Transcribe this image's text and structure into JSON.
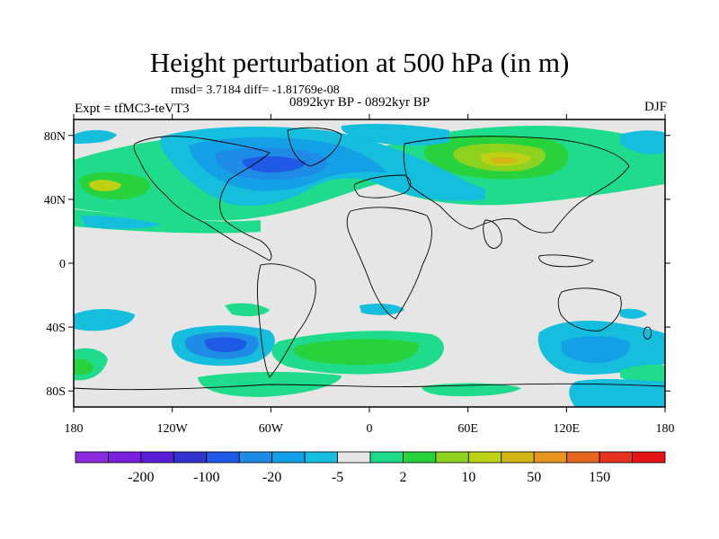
{
  "title": "Height perturbation at 500 hPa (in m)",
  "stats_line": "rmsd= 3.7184 diff= -1.81769e-08",
  "period_line": "0892kyr BP - 0892kyr BP",
  "experiment_line": "Expt = tfMC3-teVT3",
  "season": "DJF",
  "map": {
    "projection": "cylindrical-equidistant",
    "lon_range": [
      -180,
      180
    ],
    "lat_range": [
      -90,
      90
    ],
    "x_tick_labels": [
      "180",
      "120W",
      "60W",
      "0",
      "60E",
      "120E",
      "180"
    ],
    "y_tick_labels": [
      "80N",
      "40N",
      "0",
      "40S",
      "80S"
    ],
    "background_color": "#e6e6e6"
  },
  "colorbar": {
    "colors": [
      "#8a2be2",
      "#7a1ee0",
      "#5a1ed8",
      "#3232d0",
      "#1e5ae6",
      "#1e8ce6",
      "#14a0e6",
      "#14bedc",
      "#e6e6e6",
      "#1edc8c",
      "#28d23c",
      "#8cd21e",
      "#bed214",
      "#d2b414",
      "#e6961e",
      "#e6641e",
      "#e6321e",
      "#e61414"
    ],
    "labels": [
      "-200",
      "-100",
      "-20",
      "-5",
      "2",
      "10",
      "50",
      "150"
    ]
  }
}
